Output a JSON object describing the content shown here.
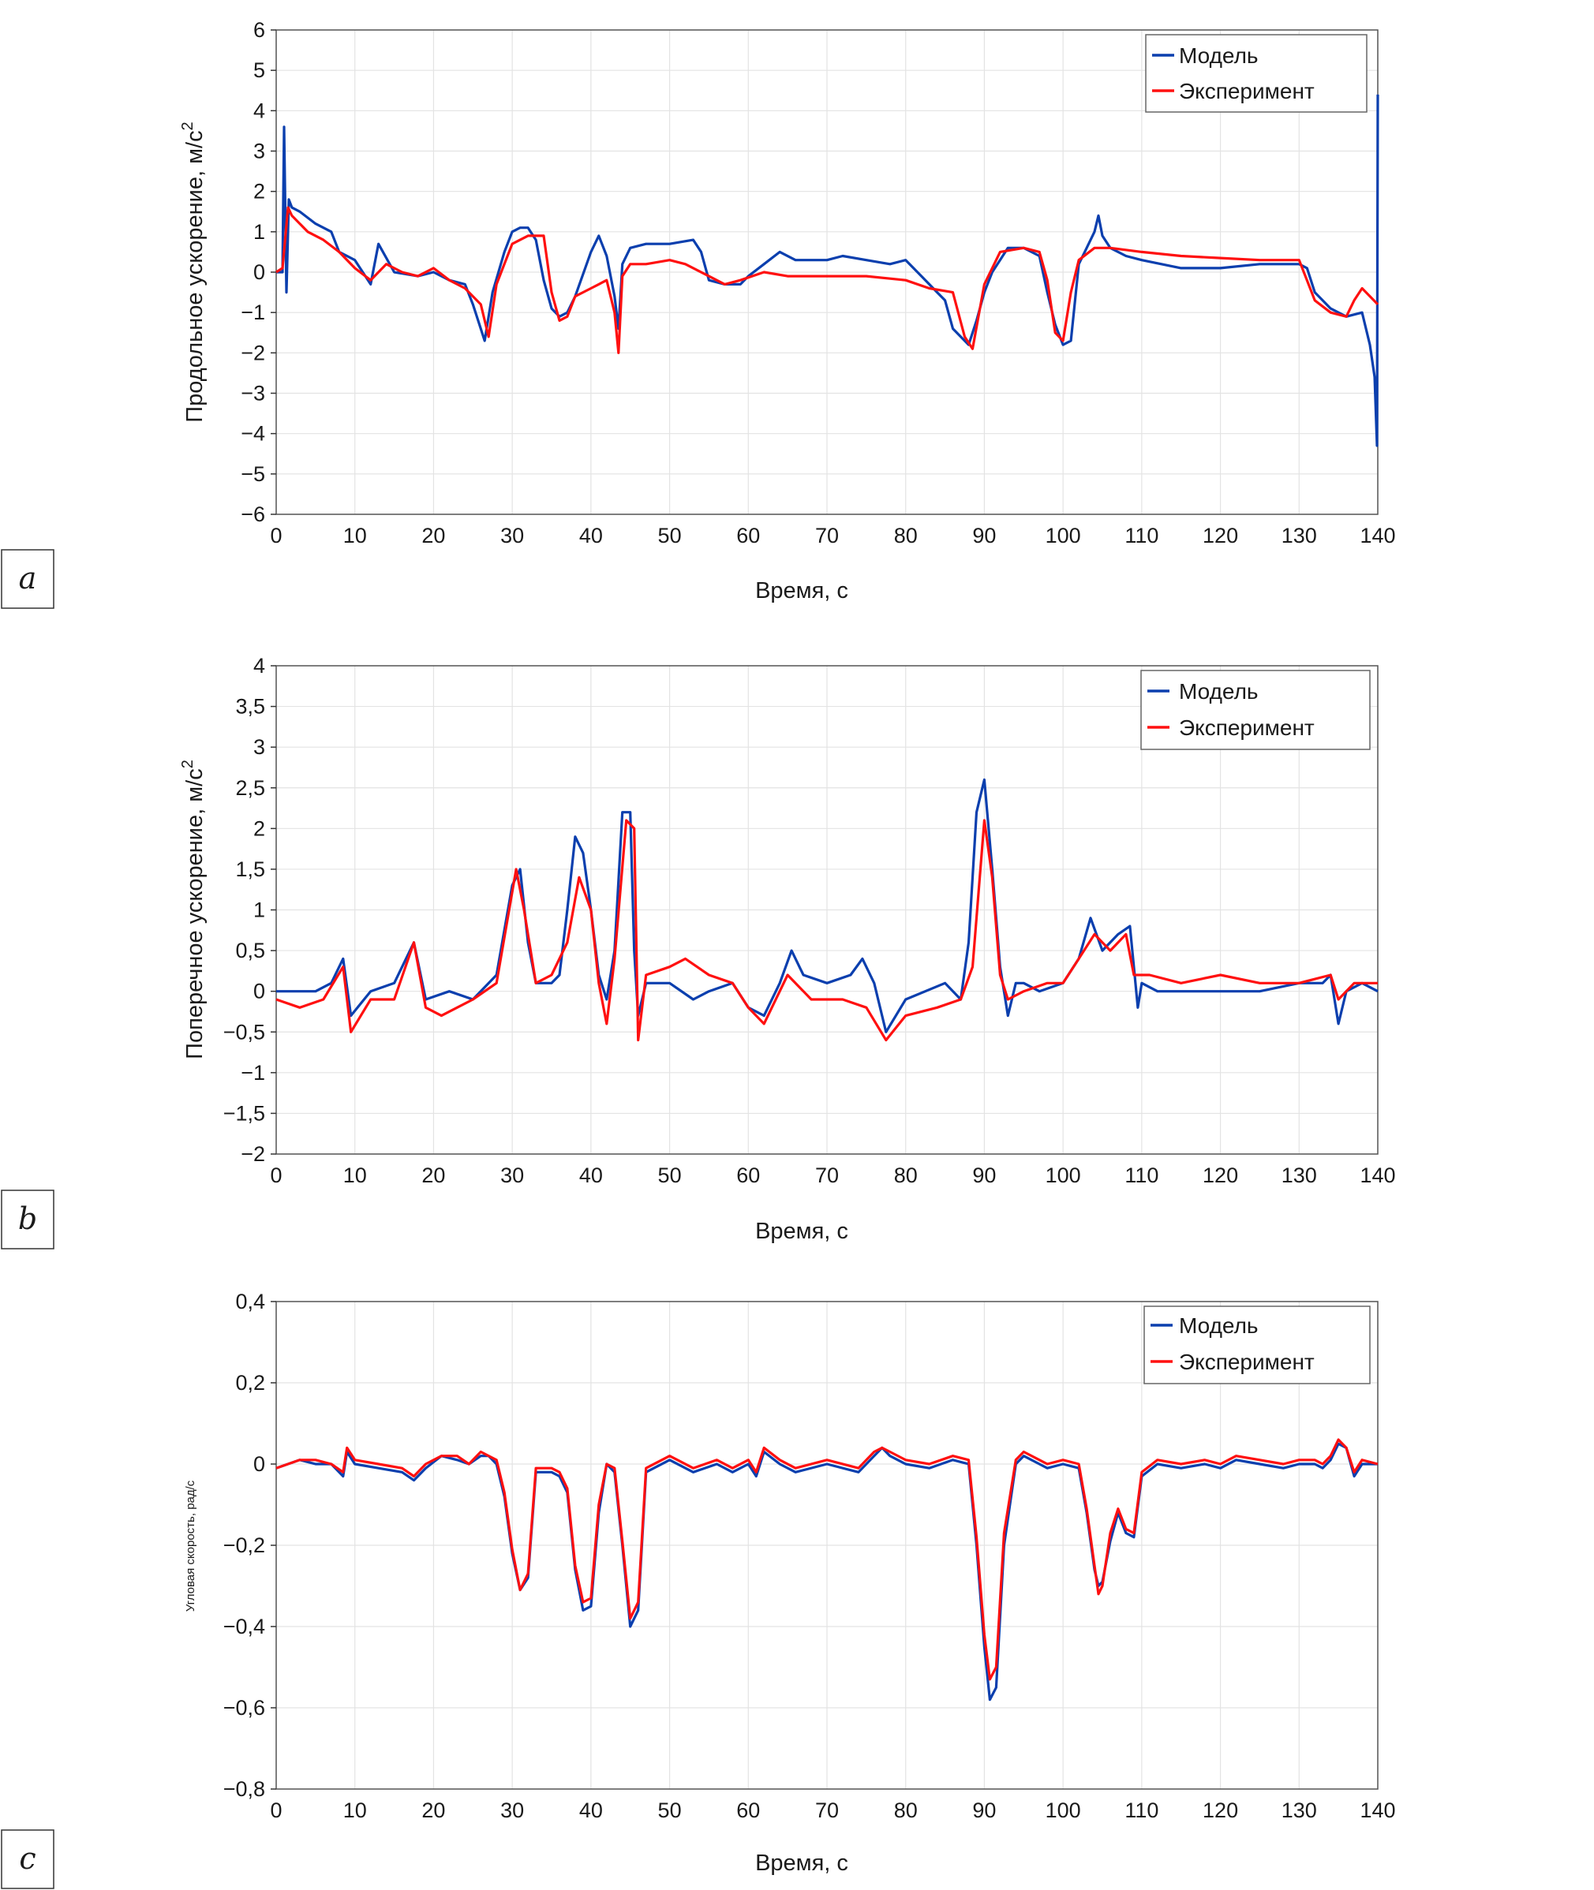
{
  "colors": {
    "model": "#0b3fae",
    "experiment": "#ff1010",
    "grid": "#e3e3e3",
    "axis": "#333333"
  },
  "legend": {
    "model": "Модель",
    "experiment": "Эксперимент"
  },
  "chart_data": [
    {
      "type": "line",
      "panel_label": "a",
      "xlabel": "Время, с",
      "ylabel": "Продольное ускорение, м/с",
      "ylabel_sup": "2",
      "xlim": [
        0,
        140
      ],
      "ylim": [
        -6,
        6
      ],
      "xticks": [
        0,
        10,
        20,
        30,
        40,
        50,
        60,
        70,
        80,
        90,
        100,
        110,
        120,
        130,
        140
      ],
      "yticks": [
        6,
        5,
        4,
        3,
        2,
        1,
        0,
        -1,
        -2,
        -3,
        -4,
        -5,
        -6
      ],
      "ytick_labels": [
        "6",
        "5",
        "4",
        "3",
        "2",
        "1",
        "0",
        "−1",
        "−2",
        "−3",
        "−4",
        "−5",
        "−6"
      ],
      "legend_position": "top-right",
      "grid": true,
      "series": [
        {
          "name": "Модель",
          "x": [
            0,
            0.8,
            1,
            1.3,
            1.6,
            2,
            3,
            5,
            7,
            8,
            10,
            12,
            13,
            15,
            18,
            20,
            22,
            24,
            25,
            26.5,
            27.5,
            29,
            30,
            31,
            32,
            33,
            34,
            35,
            36,
            37,
            38,
            40,
            41,
            42,
            43,
            43.5,
            44,
            45,
            47,
            50,
            53,
            54,
            55,
            57,
            59,
            60,
            62,
            64,
            66,
            70,
            72,
            75,
            78,
            80,
            82,
            84,
            85,
            86,
            87,
            88,
            89,
            90,
            91,
            93,
            95,
            97,
            98,
            99,
            100,
            101,
            102,
            103,
            104,
            104.5,
            105,
            106,
            108,
            110,
            115,
            120,
            125,
            130,
            131,
            132,
            134,
            136,
            138,
            139,
            139.6,
            139.9,
            140
          ],
          "values": [
            0,
            0,
            3.6,
            -0.5,
            1.8,
            1.6,
            1.5,
            1.2,
            1.0,
            0.5,
            0.3,
            -0.3,
            0.7,
            0,
            -0.1,
            0,
            -0.2,
            -0.3,
            -0.8,
            -1.7,
            -0.5,
            0.5,
            1.0,
            1.1,
            1.1,
            0.8,
            -0.2,
            -0.9,
            -1.1,
            -1.0,
            -0.6,
            0.5,
            0.9,
            0.4,
            -0.6,
            -1.4,
            0.2,
            0.6,
            0.7,
            0.7,
            0.8,
            0.5,
            -0.2,
            -0.3,
            -0.3,
            -0.1,
            0.2,
            0.5,
            0.3,
            0.3,
            0.4,
            0.3,
            0.2,
            0.3,
            -0.1,
            -0.5,
            -0.7,
            -1.4,
            -1.6,
            -1.8,
            -1.2,
            -0.5,
            0,
            0.6,
            0.6,
            0.4,
            -0.5,
            -1.3,
            -1.8,
            -1.7,
            0.2,
            0.6,
            1.0,
            1.4,
            0.9,
            0.6,
            0.4,
            0.3,
            0.1,
            0.1,
            0.2,
            0.2,
            0.1,
            -0.5,
            -0.9,
            -1.1,
            -1.0,
            -1.8,
            -2.6,
            -4.3,
            4.4
          ]
        },
        {
          "name": "Эксперимент",
          "x": [
            0,
            0.8,
            1.5,
            2,
            4,
            6,
            8,
            10,
            12,
            14,
            16,
            18,
            20,
            22,
            24,
            26,
            27,
            28,
            30,
            32,
            34,
            35,
            36,
            37,
            38,
            40,
            41,
            42,
            43,
            43.5,
            44,
            45,
            47,
            50,
            52,
            55,
            57,
            59,
            62,
            65,
            70,
            75,
            80,
            83,
            86,
            87.5,
            88.5,
            90,
            92,
            95,
            97,
            98,
            99,
            100,
            101,
            102,
            104,
            106,
            110,
            115,
            120,
            125,
            130,
            132,
            134,
            136,
            137,
            138,
            140
          ],
          "values": [
            0,
            0.1,
            1.6,
            1.4,
            1.0,
            0.8,
            0.5,
            0.1,
            -0.2,
            0.2,
            0,
            -0.1,
            0.1,
            -0.2,
            -0.4,
            -0.8,
            -1.6,
            -0.3,
            0.7,
            0.9,
            0.9,
            -0.5,
            -1.2,
            -1.1,
            -0.6,
            -0.4,
            -0.3,
            -0.2,
            -1.0,
            -2.0,
            -0.1,
            0.2,
            0.2,
            0.3,
            0.2,
            -0.1,
            -0.3,
            -0.2,
            0,
            -0.1,
            -0.1,
            -0.1,
            -0.2,
            -0.4,
            -0.5,
            -1.6,
            -1.9,
            -0.3,
            0.5,
            0.6,
            0.5,
            -0.2,
            -1.5,
            -1.7,
            -0.5,
            0.3,
            0.6,
            0.6,
            0.5,
            0.4,
            0.35,
            0.3,
            0.3,
            -0.7,
            -1.0,
            -1.1,
            -0.7,
            -0.4,
            -0.8
          ]
        }
      ]
    },
    {
      "type": "line",
      "panel_label": "b",
      "xlabel": "Время, с",
      "ylabel": "Поперечное ускорение, м/с",
      "ylabel_sup": "2",
      "xlim": [
        0,
        140
      ],
      "ylim": [
        -2,
        4
      ],
      "xticks": [
        0,
        10,
        20,
        30,
        40,
        50,
        60,
        70,
        80,
        90,
        100,
        110,
        120,
        130,
        140
      ],
      "yticks": [
        4,
        3.5,
        3,
        2.5,
        2,
        1.5,
        1,
        0.5,
        0,
        -0.5,
        -1,
        -1.5,
        -2
      ],
      "ytick_labels": [
        "4",
        "3,5",
        "3",
        "2,5",
        "2",
        "1,5",
        "1",
        "0,5",
        "0",
        "−0,5",
        "−1",
        "−1,5",
        "−2"
      ],
      "legend_position": "top-right",
      "grid": true,
      "series": [
        {
          "name": "Модель",
          "x": [
            0,
            5,
            7,
            8.5,
            9.5,
            12,
            15,
            17.5,
            19,
            22,
            25,
            28,
            30,
            31,
            32,
            33,
            35,
            36,
            37,
            38,
            39,
            40,
            41,
            42,
            43,
            44,
            45,
            45.5,
            46,
            47,
            50,
            53,
            55,
            58,
            60,
            62,
            64,
            65.5,
            67,
            70,
            73,
            74.5,
            76,
            77.5,
            80,
            85,
            87,
            88,
            89,
            90,
            91,
            92,
            93,
            94,
            95,
            97,
            100,
            102,
            103.5,
            105,
            107,
            108.5,
            109.5,
            110,
            112,
            115,
            120,
            125,
            130,
            133,
            134,
            135,
            136,
            138,
            140
          ],
          "values": [
            0,
            0,
            0.1,
            0.4,
            -0.3,
            0,
            0.1,
            0.6,
            -0.1,
            0,
            -0.1,
            0.2,
            1.3,
            1.5,
            0.6,
            0.1,
            0.1,
            0.2,
            1.0,
            1.9,
            1.7,
            1.0,
            0.2,
            -0.1,
            0.5,
            2.2,
            2.2,
            0.5,
            -0.3,
            0.1,
            0.1,
            -0.1,
            0,
            0.1,
            -0.2,
            -0.3,
            0.1,
            0.5,
            0.2,
            0.1,
            0.2,
            0.4,
            0.1,
            -0.5,
            -0.1,
            0.1,
            -0.1,
            0.6,
            2.2,
            2.6,
            1.5,
            0.3,
            -0.3,
            0.1,
            0.1,
            0,
            0.1,
            0.4,
            0.9,
            0.5,
            0.7,
            0.8,
            -0.2,
            0.1,
            0,
            0,
            0,
            0,
            0.1,
            0.1,
            0.2,
            -0.4,
            0,
            0.1,
            0
          ]
        },
        {
          "name": "Эксперимент",
          "x": [
            0,
            3,
            6,
            8.5,
            9.5,
            12,
            15,
            17.5,
            19,
            21,
            25,
            28,
            30.5,
            31.5,
            33,
            35,
            37,
            38.5,
            40,
            41,
            42,
            43,
            44.5,
            45.5,
            46,
            47,
            50,
            52,
            55,
            58,
            60,
            62,
            65,
            68,
            72,
            75,
            77.5,
            80,
            84,
            87,
            88.5,
            90,
            91,
            92,
            93,
            95,
            98,
            100,
            102,
            104,
            106,
            108,
            109,
            111,
            115,
            120,
            125,
            130,
            134,
            135,
            137,
            140
          ],
          "values": [
            -0.1,
            -0.2,
            -0.1,
            0.3,
            -0.5,
            -0.1,
            -0.1,
            0.6,
            -0.2,
            -0.3,
            -0.1,
            0.1,
            1.5,
            1.0,
            0.1,
            0.2,
            0.6,
            1.4,
            1.0,
            0.1,
            -0.4,
            0.4,
            2.1,
            2.0,
            -0.6,
            0.2,
            0.3,
            0.4,
            0.2,
            0.1,
            -0.2,
            -0.4,
            0.2,
            -0.1,
            -0.1,
            -0.2,
            -0.6,
            -0.3,
            -0.2,
            -0.1,
            0.3,
            2.1,
            1.4,
            0.2,
            -0.1,
            0,
            0.1,
            0.1,
            0.4,
            0.7,
            0.5,
            0.7,
            0.2,
            0.2,
            0.1,
            0.2,
            0.1,
            0.1,
            0.2,
            -0.1,
            0.1,
            0.1
          ]
        }
      ]
    },
    {
      "type": "line",
      "panel_label": "c",
      "xlabel": "Время, с",
      "ylabel": "Угловая скорость, рад/с",
      "xlim": [
        0,
        140
      ],
      "ylim": [
        -0.8,
        0.4
      ],
      "xticks": [
        0,
        10,
        20,
        30,
        40,
        50,
        60,
        70,
        80,
        90,
        100,
        110,
        120,
        130,
        140
      ],
      "yticks": [
        0.4,
        0.2,
        0,
        -0.2,
        -0.4,
        -0.6,
        -0.8
      ],
      "ytick_labels": [
        "0,4",
        "0,2",
        "0",
        "−0,2",
        "−0,4",
        "−0,6",
        "−0,8"
      ],
      "legend_position": "top-right",
      "grid": true,
      "series": [
        {
          "name": "Модель",
          "x": [
            0,
            3,
            5,
            7,
            8.5,
            9,
            10,
            13,
            16,
            17.5,
            19,
            21,
            23,
            24.5,
            26,
            27,
            28,
            29,
            30,
            31,
            32,
            33,
            35,
            36,
            37,
            38,
            39,
            40,
            41,
            42,
            43,
            44,
            45,
            46,
            47,
            50,
            53,
            56,
            58,
            60,
            61,
            62,
            64,
            66,
            70,
            74,
            76,
            77,
            78,
            80,
            83,
            86,
            88,
            89,
            90,
            90.7,
            91.5,
            92.5,
            94,
            95,
            97,
            98,
            100,
            102,
            103,
            104,
            104.5,
            105,
            106,
            107,
            108,
            109,
            110,
            112,
            115,
            118,
            120,
            122,
            125,
            128,
            130,
            132,
            133,
            134,
            135,
            136,
            137,
            138,
            140
          ],
          "values": [
            -0.01,
            0.01,
            0,
            0,
            -0.03,
            0.03,
            0,
            -0.01,
            -0.02,
            -0.04,
            -0.01,
            0.02,
            0.01,
            0,
            0.02,
            0.02,
            0,
            -0.08,
            -0.22,
            -0.31,
            -0.28,
            -0.02,
            -0.02,
            -0.03,
            -0.07,
            -0.26,
            -0.36,
            -0.35,
            -0.12,
            0,
            -0.02,
            -0.2,
            -0.4,
            -0.36,
            -0.02,
            0.01,
            -0.02,
            0,
            -0.02,
            0,
            -0.03,
            0.03,
            0,
            -0.02,
            0,
            -0.02,
            0.02,
            0.04,
            0.02,
            0,
            -0.01,
            0.01,
            0,
            -0.2,
            -0.45,
            -0.58,
            -0.55,
            -0.2,
            0,
            0.02,
            0,
            -0.01,
            0,
            -0.01,
            -0.12,
            -0.26,
            -0.3,
            -0.29,
            -0.19,
            -0.12,
            -0.17,
            -0.18,
            -0.03,
            0,
            -0.01,
            0,
            -0.01,
            0.01,
            0,
            -0.01,
            0,
            0,
            -0.01,
            0.01,
            0.05,
            0.04,
            -0.03,
            0,
            0
          ]
        },
        {
          "name": "Эксперимент",
          "x": [
            0,
            3,
            5,
            7,
            8.5,
            9,
            10,
            13,
            16,
            17.5,
            19,
            21,
            23,
            24.5,
            26,
            27,
            28,
            29,
            30,
            31,
            32,
            33,
            35,
            36,
            37,
            38,
            39,
            40,
            41,
            42,
            43,
            44,
            45,
            46,
            47,
            50,
            53,
            56,
            58,
            60,
            61,
            62,
            64,
            66,
            70,
            74,
            76,
            77,
            78,
            80,
            83,
            86,
            88,
            89,
            90,
            90.7,
            91.5,
            92.5,
            94,
            95,
            97,
            98,
            100,
            102,
            103,
            104,
            104.5,
            105,
            106,
            107,
            108,
            109,
            110,
            112,
            115,
            118,
            120,
            122,
            125,
            128,
            130,
            132,
            133,
            134,
            135,
            136,
            137,
            138,
            140
          ],
          "values": [
            -0.01,
            0.01,
            0.01,
            0,
            -0.02,
            0.04,
            0.01,
            0,
            -0.01,
            -0.03,
            0,
            0.02,
            0.02,
            0,
            0.03,
            0.02,
            0.01,
            -0.07,
            -0.21,
            -0.31,
            -0.27,
            -0.01,
            -0.01,
            -0.02,
            -0.06,
            -0.25,
            -0.34,
            -0.33,
            -0.1,
            0,
            -0.01,
            -0.19,
            -0.38,
            -0.34,
            -0.01,
            0.02,
            -0.01,
            0.01,
            -0.01,
            0.01,
            -0.02,
            0.04,
            0.01,
            -0.01,
            0.01,
            -0.01,
            0.03,
            0.04,
            0.03,
            0.01,
            0,
            0.02,
            0.01,
            -0.18,
            -0.42,
            -0.53,
            -0.5,
            -0.17,
            0.01,
            0.03,
            0.01,
            0,
            0.01,
            0,
            -0.11,
            -0.25,
            -0.32,
            -0.3,
            -0.17,
            -0.11,
            -0.16,
            -0.17,
            -0.02,
            0.01,
            0,
            0.01,
            0,
            0.02,
            0.01,
            0,
            0.01,
            0.01,
            0,
            0.02,
            0.06,
            0.04,
            -0.02,
            0.01,
            0
          ]
        }
      ]
    }
  ]
}
